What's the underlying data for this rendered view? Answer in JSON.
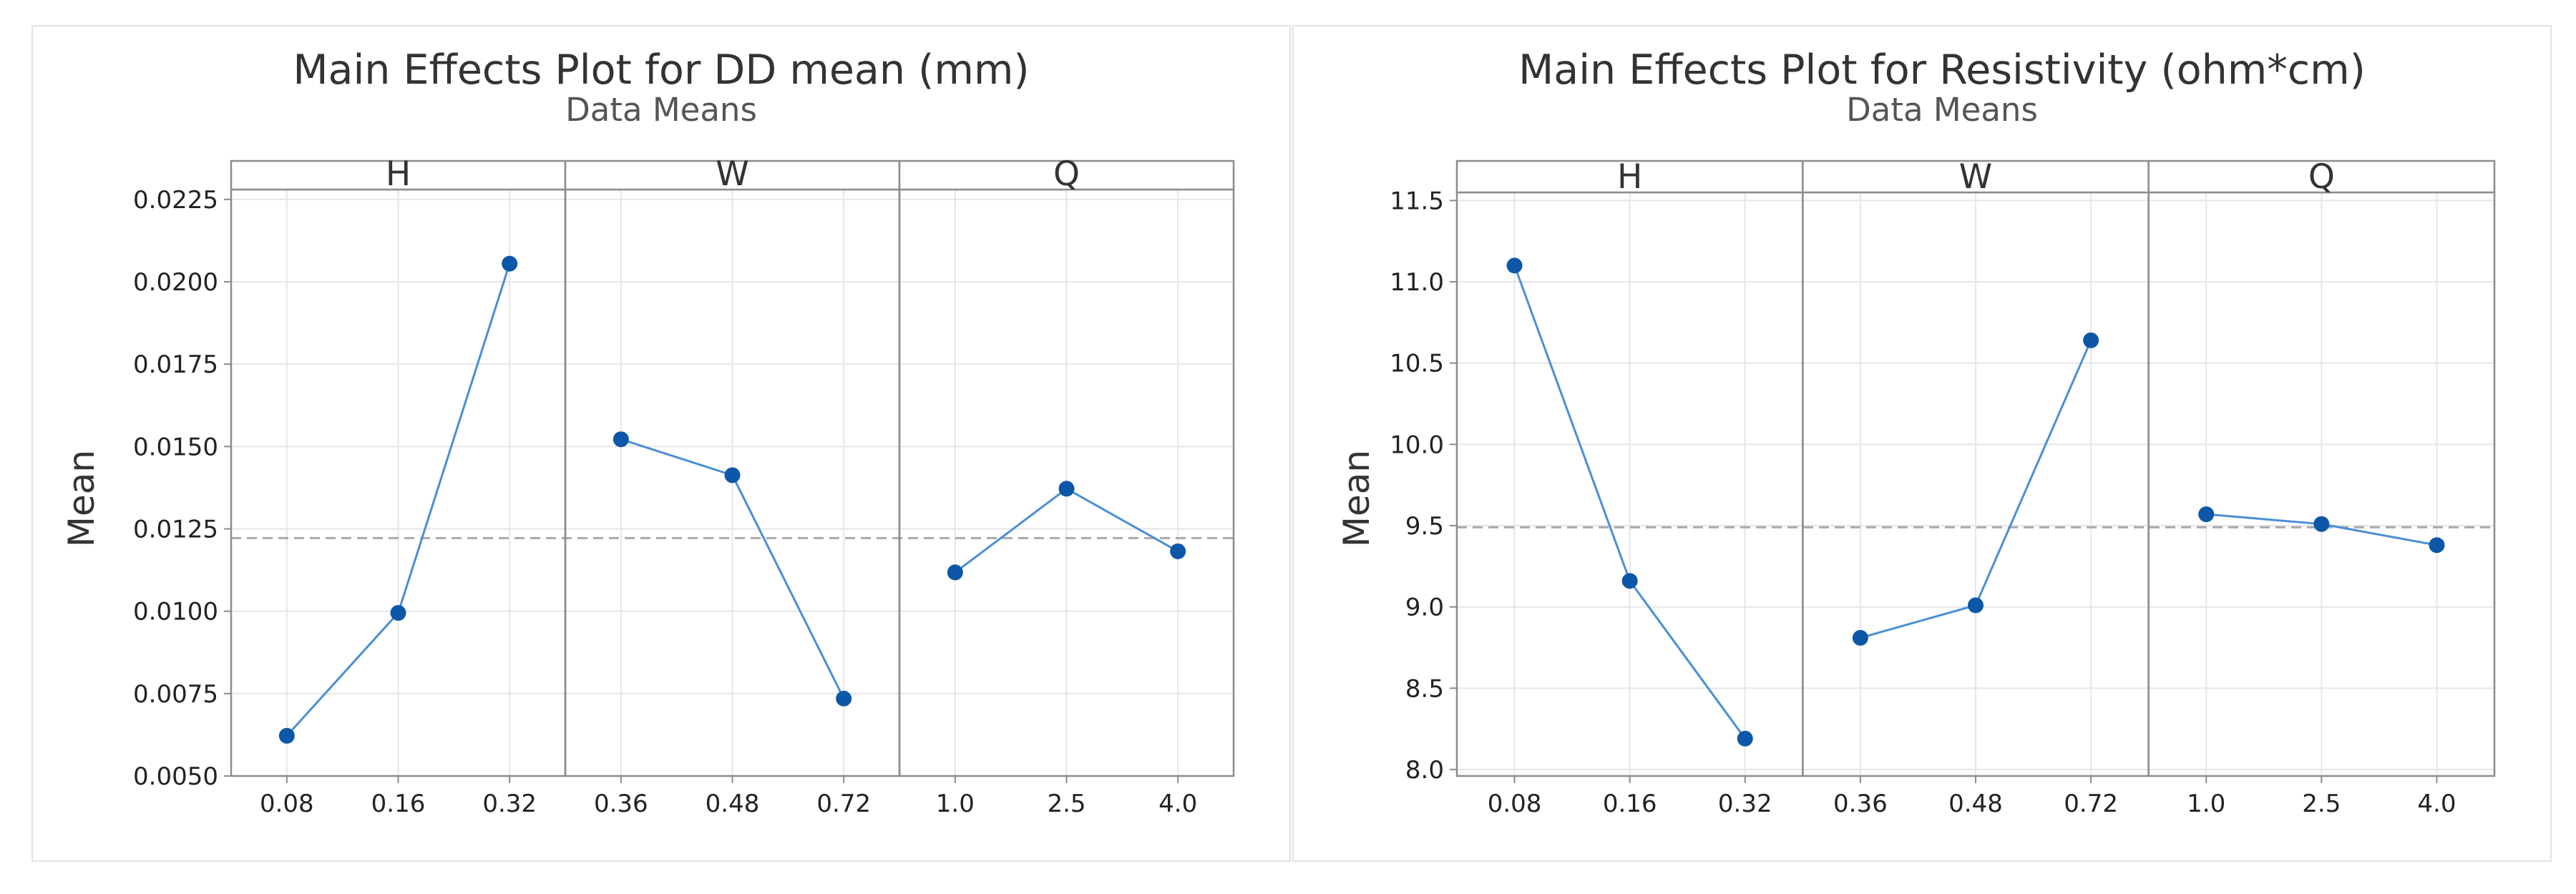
{
  "colors": {
    "line": "#4a8fd4",
    "point": "#0d57a8",
    "grid": "#e6e6e6",
    "frame": "#8c8c8c",
    "reference": "#a9a9a9"
  },
  "chart_data": [
    {
      "type": "line",
      "title": "Main Effects Plot for DD mean (mm)",
      "subtitle": "Data Means",
      "ylabel": "Mean",
      "ylim": [
        0.005,
        0.0228
      ],
      "yticks": [
        "0.0225",
        "0.0200",
        "0.0175",
        "0.0150",
        "0.0125",
        "0.0100",
        "0.0075",
        "0.0050"
      ],
      "reference_mean": 0.01222,
      "facets": [
        {
          "name": "H",
          "categories": [
            "0.08",
            "0.16",
            "0.32"
          ],
          "values": [
            0.00622,
            0.00995,
            0.02055
          ]
        },
        {
          "name": "W",
          "categories": [
            "0.36",
            "0.48",
            "0.72"
          ],
          "values": [
            0.01522,
            0.01413,
            0.00735
          ]
        },
        {
          "name": "Q",
          "categories": [
            "1.0",
            "2.5",
            "4.0"
          ],
          "values": [
            0.01118,
            0.01372,
            0.01182
          ]
        }
      ]
    },
    {
      "type": "line",
      "title": "Main Effects Plot for Resistivity (ohm*cm)",
      "subtitle": "Data Means",
      "ylabel": "Mean",
      "ylim": [
        7.96,
        11.55
      ],
      "yticks": [
        "11.5",
        "11.0",
        "10.5",
        "10.0",
        "9.5",
        "9.0",
        "8.5",
        "8.0"
      ],
      "reference_mean": 9.49,
      "facets": [
        {
          "name": "H",
          "categories": [
            "0.08",
            "0.16",
            "0.32"
          ],
          "values": [
            11.1,
            9.16,
            8.19
          ]
        },
        {
          "name": "W",
          "categories": [
            "0.36",
            "0.48",
            "0.72"
          ],
          "values": [
            8.81,
            9.01,
            10.64
          ]
        },
        {
          "name": "Q",
          "categories": [
            "1.0",
            "2.5",
            "4.0"
          ],
          "values": [
            9.57,
            9.51,
            9.38
          ]
        }
      ]
    }
  ]
}
